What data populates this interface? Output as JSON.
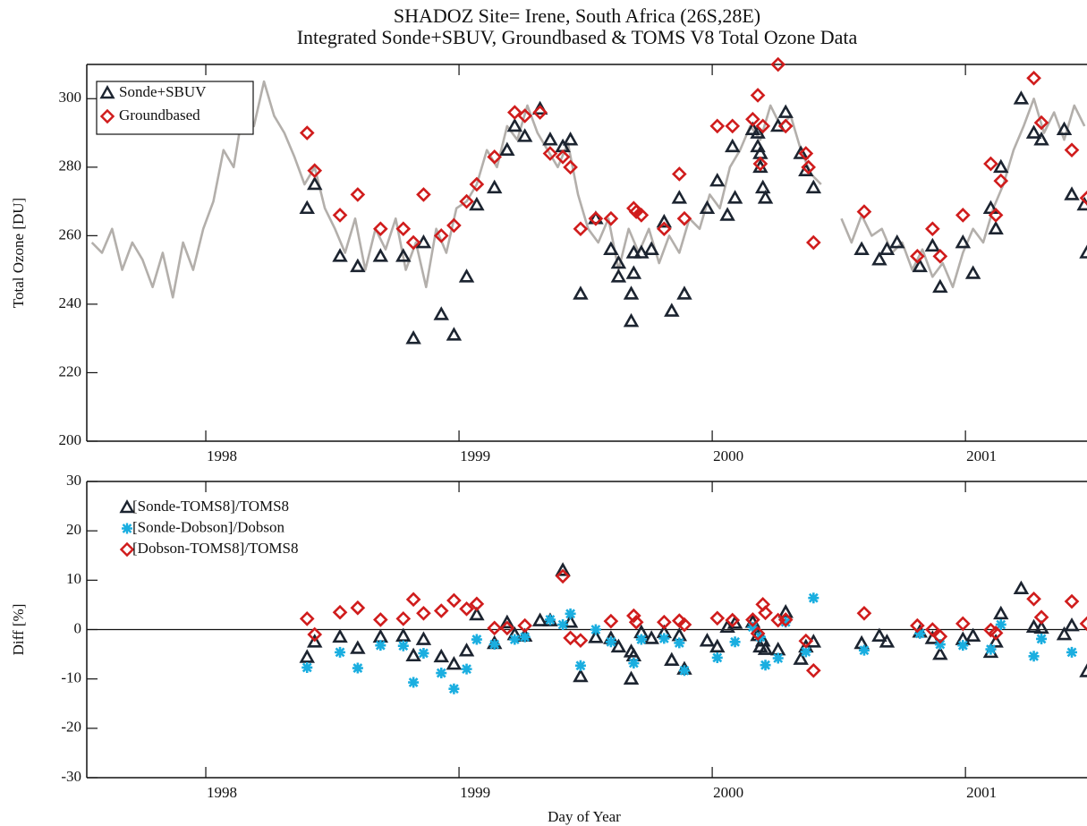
{
  "chart_data": [
    {
      "type": "line",
      "title": "SHADOZ Site= Irene, South Africa  (26S,28E)",
      "subtitle": "Integrated Sonde+SBUV, Groundbased & TOMS V8 Total Ozone Data",
      "y_label": "Total Ozone [DU]",
      "xlim": [
        1997.53,
        2001.48
      ],
      "xticks": [
        1998,
        1999,
        2000,
        2001
      ],
      "ylim": [
        200,
        310
      ],
      "yticks": [
        200,
        220,
        240,
        260,
        280,
        300
      ],
      "legend": "upper left",
      "legend_box": true,
      "series": [
        {
          "color": "#b3afab",
          "style": "line",
          "x": [
            1997.55,
            1997.59,
            1997.63,
            1997.67,
            1997.71,
            1997.75,
            1997.79,
            1997.83,
            1997.87,
            1997.91,
            1997.95,
            1997.99,
            1998.03,
            1998.07,
            1998.11,
            1998.15,
            1998.19,
            1998.23,
            1998.27,
            1998.31,
            1998.35,
            1998.39,
            1998.43,
            1998.47,
            1998.51,
            1998.55,
            1998.59,
            1998.63,
            1998.67,
            1998.71,
            1998.75,
            1998.79,
            1998.83,
            1998.87,
            1998.91,
            1998.95,
            1998.99,
            1999.03,
            1999.07,
            1999.11,
            1999.15,
            1999.19,
            1999.23,
            1999.27,
            1999.31,
            1999.35,
            1999.39,
            1999.43,
            1999.47,
            1999.51,
            1999.55,
            1999.59,
            1999.63,
            1999.67,
            1999.71,
            1999.75,
            1999.79,
            1999.83,
            1999.87,
            1999.91,
            1999.95,
            1999.99,
            2000.03,
            2000.07,
            2000.11,
            2000.15,
            2000.19,
            2000.23,
            2000.27,
            2000.31,
            2000.35,
            2000.39,
            2000.43,
            2000.47,
            2000.51,
            2000.55,
            2000.59,
            2000.63,
            2000.67,
            2000.71,
            2000.75,
            2000.79,
            2000.83,
            2000.87,
            2000.91,
            2000.95,
            2000.99,
            2001.03,
            2001.07,
            2001.11,
            2001.15,
            2001.19,
            2001.23,
            2001.27,
            2001.31,
            2001.35,
            2001.39,
            2001.43,
            2001.47
          ],
          "values": [
            258,
            255,
            262,
            250,
            258,
            253,
            245,
            255,
            242,
            258,
            250,
            262,
            270,
            285,
            280,
            298,
            292,
            305,
            295,
            290,
            283,
            275,
            280,
            268,
            262,
            255,
            265,
            250,
            262,
            256,
            265,
            250,
            258,
            245,
            262,
            255,
            268,
            270,
            275,
            285,
            280,
            292,
            288,
            298,
            290,
            285,
            280,
            287,
            272,
            262,
            258,
            265,
            250,
            262,
            255,
            262,
            252,
            260,
            255,
            265,
            262,
            272,
            268,
            280,
            285,
            292,
            288,
            298,
            292,
            295,
            285,
            278,
            275,
            null,
            265,
            258,
            266,
            260,
            262,
            255,
            258,
            250,
            256,
            248,
            252,
            245,
            255,
            262,
            258,
            268,
            275,
            285,
            292,
            300,
            290,
            296,
            288,
            298,
            292
          ]
        },
        {
          "name": "Sonde+SBUV",
          "color": "#1c2430",
          "marker": "triangle",
          "x": [
            1998.4,
            1998.43,
            1998.53,
            1998.6,
            1998.69,
            1998.78,
            1998.82,
            1998.86,
            1998.93,
            1998.98,
            1999.03,
            1999.07,
            1999.14,
            1999.19,
            1999.22,
            1999.26,
            1999.32,
            1999.36,
            1999.41,
            1999.44,
            1999.48,
            1999.54,
            1999.6,
            1999.63,
            1999.63,
            1999.68,
            1999.68,
            1999.69,
            1999.69,
            1999.72,
            1999.76,
            1999.81,
            1999.84,
            1999.87,
            1999.89,
            1999.98,
            2000.02,
            2000.06,
            2000.08,
            2000.09,
            2000.16,
            2000.18,
            2000.18,
            2000.19,
            2000.19,
            2000.2,
            2000.21,
            2000.26,
            2000.29,
            2000.35,
            2000.37,
            2000.4,
            2000.59,
            2000.66,
            2000.69,
            2000.73,
            2000.82,
            2000.87,
            2000.9,
            2000.99,
            2001.03,
            2001.1,
            2001.12,
            2001.14,
            2001.22,
            2001.27,
            2001.3,
            2001.39,
            2001.42,
            2001.47,
            2001.48
          ],
          "values": [
            268,
            275,
            254,
            251,
            254,
            254,
            230,
            258,
            237,
            231,
            248,
            269,
            274,
            285,
            292,
            289,
            297,
            288,
            286,
            288,
            243,
            265,
            256,
            252,
            248,
            243,
            235,
            249,
            255,
            255,
            256,
            264,
            238,
            271,
            243,
            268,
            276,
            266,
            286,
            271,
            291,
            290,
            286,
            280,
            284,
            274,
            271,
            292,
            296,
            284,
            279,
            274,
            256,
            253,
            256,
            258,
            251,
            257,
            245,
            258,
            249,
            268,
            262,
            280,
            300,
            290,
            288,
            291,
            272,
            269,
            255
          ]
        },
        {
          "name": "Groundbased",
          "color": "#d01c1c",
          "marker": "diamond",
          "x": [
            1998.4,
            1998.43,
            1998.53,
            1998.6,
            1998.69,
            1998.78,
            1998.82,
            1998.86,
            1998.93,
            1998.98,
            1999.03,
            1999.07,
            1999.14,
            1999.22,
            1999.26,
            1999.32,
            1999.36,
            1999.41,
            1999.44,
            1999.48,
            1999.54,
            1999.6,
            1999.69,
            1999.7,
            1999.72,
            1999.81,
            1999.87,
            1999.89,
            2000.02,
            2000.08,
            2000.16,
            2000.18,
            2000.19,
            2000.2,
            2000.26,
            2000.29,
            2000.37,
            2000.38,
            2000.4,
            2000.6,
            2000.81,
            2000.87,
            2000.9,
            2000.99,
            2001.1,
            2001.12,
            2001.14,
            2001.27,
            2001.3,
            2001.42,
            2001.48
          ],
          "values": [
            290,
            279,
            266,
            272,
            262,
            262,
            258,
            272,
            260,
            263,
            270,
            275,
            283,
            296,
            295,
            296,
            284,
            283,
            280,
            262,
            265,
            265,
            268,
            267,
            266,
            262,
            278,
            265,
            292,
            292,
            294,
            301,
            281,
            292,
            310,
            292,
            284,
            280,
            258,
            267,
            254,
            262,
            254,
            266,
            281,
            266,
            276,
            306,
            293,
            285,
            271
          ]
        }
      ]
    },
    {
      "type": "scatter",
      "y_label": "Diff [%]",
      "x_label": "Day of Year",
      "xlim": [
        1997.53,
        2001.48
      ],
      "xticks": [
        1998,
        1999,
        2000,
        2001
      ],
      "ylim": [
        -30,
        30
      ],
      "yticks": [
        -30,
        -20,
        -10,
        0,
        10,
        20,
        30
      ],
      "zero_line": true,
      "legend": "upper left",
      "legend_box": false,
      "series": [
        {
          "name": "[Sonde-TOMS8]/TOMS8",
          "color": "#1c2430",
          "marker": "triangle",
          "x": [
            1998.4,
            1998.43,
            1998.53,
            1998.6,
            1998.69,
            1998.78,
            1998.82,
            1998.86,
            1998.93,
            1998.98,
            1999.03,
            1999.07,
            1999.14,
            1999.19,
            1999.22,
            1999.26,
            1999.32,
            1999.36,
            1999.41,
            1999.44,
            1999.48,
            1999.54,
            1999.6,
            1999.63,
            1999.68,
            1999.68,
            1999.69,
            1999.72,
            1999.76,
            1999.81,
            1999.84,
            1999.87,
            1999.89,
            1999.98,
            2000.02,
            2000.06,
            2000.09,
            2000.16,
            2000.18,
            2000.19,
            2000.2,
            2000.21,
            2000.26,
            2000.29,
            2000.35,
            2000.37,
            2000.4,
            2000.59,
            2000.66,
            2000.69,
            2000.82,
            2000.87,
            2000.9,
            2000.99,
            2001.03,
            2001.1,
            2001.12,
            2001.14,
            2001.22,
            2001.27,
            2001.3,
            2001.39,
            2001.42,
            2001.48
          ],
          "values": [
            -5.6,
            -2.5,
            -1.5,
            -3.8,
            -1.5,
            -1.3,
            -5.3,
            -2,
            -5.5,
            -7,
            -4.3,
            3,
            -2.8,
            1.4,
            -1,
            -1.3,
            1.8,
            1.8,
            12,
            1.5,
            -9.5,
            -1.6,
            -1.8,
            -3.5,
            -4.5,
            -10,
            -5.3,
            -0.6,
            -1.8,
            -0.6,
            -6.2,
            -1.2,
            -8,
            -2.3,
            -3.5,
            0.5,
            1.3,
            1.5,
            -1.2,
            -3.5,
            -2.3,
            -4,
            -4.1,
            3.5,
            -6,
            -3.5,
            -2.5,
            -2.8,
            -1.3,
            -2.5,
            -0.5,
            -1.8,
            -5,
            -2,
            -1.3,
            -4.6,
            -2.5,
            3.2,
            8.3,
            0.5,
            0.3,
            -1,
            0.8,
            -8.5
          ]
        },
        {
          "name": "[Sonde-Dobson]/Dobson",
          "color": "#1aaee0",
          "marker": "asterisk",
          "x": [
            1998.4,
            1998.53,
            1998.6,
            1998.69,
            1998.78,
            1998.82,
            1998.86,
            1998.93,
            1998.98,
            1999.03,
            1999.07,
            1999.14,
            1999.22,
            1999.26,
            1999.36,
            1999.41,
            1999.44,
            1999.48,
            1999.54,
            1999.6,
            1999.69,
            1999.72,
            1999.81,
            1999.87,
            1999.89,
            2000.02,
            2000.09,
            2000.16,
            2000.19,
            2000.21,
            2000.26,
            2000.29,
            2000.37,
            2000.4,
            2000.6,
            2000.82,
            2000.9,
            2000.99,
            2001.1,
            2001.14,
            2001.27,
            2001.3,
            2001.42
          ],
          "values": [
            -7.7,
            -4.6,
            -7.8,
            -3.2,
            -3.3,
            -10.7,
            -4.8,
            -8.8,
            -12,
            -8,
            -2,
            -3,
            -2,
            -1.5,
            2,
            1,
            3.2,
            -7.3,
            0,
            -2.5,
            -6.8,
            -2,
            -1.8,
            -2.7,
            -8.3,
            -5.7,
            -2.5,
            0.5,
            -1.5,
            -7.2,
            -5.8,
            1.5,
            -4.5,
            6.4,
            -4.2,
            -0.8,
            -3,
            -3.2,
            -4,
            1,
            -5.4,
            -1.9,
            -4.6
          ]
        },
        {
          "name": "[Dobson-TOMS8]/TOMS8",
          "color": "#d01c1c",
          "marker": "diamond",
          "x": [
            1998.4,
            1998.43,
            1998.53,
            1998.6,
            1998.69,
            1998.78,
            1998.82,
            1998.86,
            1998.93,
            1998.98,
            1999.03,
            1999.07,
            1999.14,
            1999.19,
            1999.26,
            1999.41,
            1999.44,
            1999.48,
            1999.6,
            1999.69,
            1999.7,
            1999.81,
            1999.87,
            1999.89,
            2000.02,
            2000.08,
            2000.16,
            2000.18,
            2000.2,
            2000.21,
            2000.26,
            2000.29,
            2000.37,
            2000.4,
            2000.6,
            2000.81,
            2000.87,
            2000.9,
            2000.99,
            2001.1,
            2001.12,
            2001.27,
            2001.3,
            2001.42,
            2001.48
          ],
          "values": [
            2.2,
            -1,
            3.5,
            4.4,
            2,
            2.2,
            6.1,
            3.3,
            3.8,
            5.9,
            4.2,
            5.2,
            0.3,
            0.3,
            0.8,
            10.8,
            -1.7,
            -2.2,
            1.7,
            2.8,
            1.5,
            1.5,
            1.8,
            1,
            2.3,
            1.9,
            2,
            -0.8,
            5.1,
            3.4,
            1.9,
            2,
            -2.3,
            -8.3,
            3.3,
            0.8,
            0,
            -1.4,
            1.2,
            -0.1,
            -0.7,
            6.2,
            2.5,
            5.7,
            1.2
          ]
        }
      ]
    }
  ]
}
